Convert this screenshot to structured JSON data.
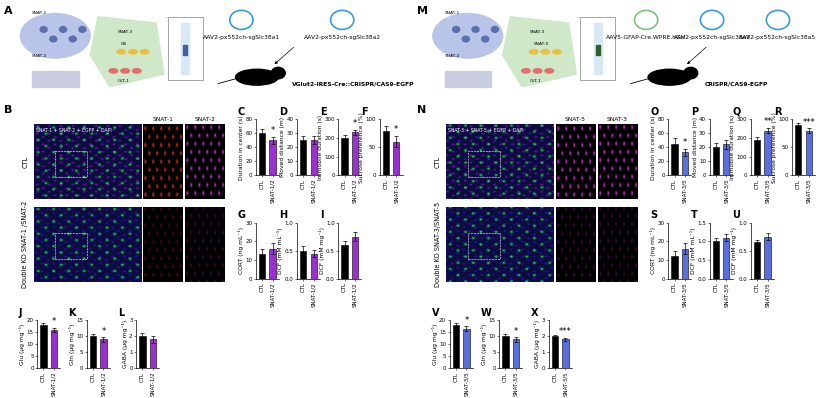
{
  "chart_data": [
    {
      "type": "bar",
      "title": "C",
      "ylabel": "Duration in center (s)",
      "categories": [
        "CTL",
        "SNAT-1/2"
      ],
      "values": [
        60,
        50
      ],
      "errors": [
        6,
        5
      ],
      "colors": [
        "#000000",
        "#9b30d0"
      ],
      "ylim": [
        0,
        80
      ],
      "yticks": [
        0,
        20,
        40,
        60,
        80
      ],
      "significance": "*"
    },
    {
      "type": "bar",
      "title": "D",
      "ylabel": "Moved distance (m)",
      "categories": [
        "CTL",
        "SNAT-1/2"
      ],
      "values": [
        25,
        25
      ],
      "errors": [
        3,
        3
      ],
      "colors": [
        "#000000",
        "#9b30d0"
      ],
      "ylim": [
        0,
        40
      ],
      "yticks": [
        0,
        10,
        20,
        30,
        40
      ]
    },
    {
      "type": "bar",
      "title": "E",
      "ylabel": "Immobile duration (s)",
      "categories": [
        "CTL",
        "SNAT-1/2"
      ],
      "values": [
        200,
        230
      ],
      "errors": [
        15,
        15
      ],
      "colors": [
        "#000000",
        "#9b30d0"
      ],
      "ylim": [
        0,
        300
      ],
      "yticks": [
        0,
        100,
        200,
        300
      ],
      "significance": "*"
    },
    {
      "type": "bar",
      "title": "F",
      "ylabel": "Sucrose preference (%)",
      "categories": [
        "CTL",
        "SNAT-1/2"
      ],
      "values": [
        80,
        60
      ],
      "errors": [
        8,
        10
      ],
      "colors": [
        "#000000",
        "#9b30d0"
      ],
      "ylim": [
        0,
        100
      ],
      "yticks": [
        0,
        50,
        100
      ],
      "significance": "*"
    },
    {
      "type": "bar",
      "title": "G",
      "ylabel": "CORT (ng mL⁻¹)",
      "categories": [
        "CTL",
        "SNAT-1/2"
      ],
      "values": [
        13,
        16
      ],
      "errors": [
        3,
        3
      ],
      "colors": [
        "#000000",
        "#9b30d0"
      ],
      "ylim": [
        0,
        30
      ],
      "yticks": [
        0,
        10,
        20,
        30
      ]
    },
    {
      "type": "bar",
      "title": "H",
      "ylabel": "DCF (mM mL⁻¹)",
      "categories": [
        "CTL",
        "SNAT-1/2"
      ],
      "values": [
        0.5,
        0.45
      ],
      "errors": [
        0.08,
        0.06
      ],
      "colors": [
        "#000000",
        "#9b30d0"
      ],
      "ylim": [
        0.0,
        1.0
      ],
      "yticks": [
        0.0,
        0.5,
        1.0
      ]
    },
    {
      "type": "bar",
      "title": "I",
      "ylabel": "DCF (mM mg⁻¹)",
      "categories": [
        "CTL",
        "SNAT-1/2"
      ],
      "values": [
        0.6,
        0.75
      ],
      "errors": [
        0.08,
        0.08
      ],
      "colors": [
        "#000000",
        "#9b30d0"
      ],
      "ylim": [
        0.0,
        1.0
      ],
      "yticks": [
        0.0,
        0.5,
        1.0
      ]
    },
    {
      "type": "bar",
      "title": "J",
      "ylabel": "Glu (μg mg⁻¹)",
      "categories": [
        "CTL",
        "SNAT-1/2"
      ],
      "values": [
        18,
        16
      ],
      "errors": [
        1,
        1
      ],
      "colors": [
        "#000000",
        "#9b30d0"
      ],
      "ylim": [
        0,
        20
      ],
      "yticks": [
        0,
        5,
        10,
        15,
        20
      ],
      "significance": "*"
    },
    {
      "type": "bar",
      "title": "K",
      "ylabel": "Gln (μg mg⁻¹)",
      "categories": [
        "CTL",
        "SNAT-1/2"
      ],
      "values": [
        10,
        9
      ],
      "errors": [
        0.8,
        0.8
      ],
      "colors": [
        "#000000",
        "#9b30d0"
      ],
      "ylim": [
        0,
        15
      ],
      "yticks": [
        0,
        5,
        10,
        15
      ],
      "significance": "*"
    },
    {
      "type": "bar",
      "title": "L",
      "ylabel": "GABA (μg mg⁻¹)",
      "categories": [
        "CTL",
        "SNAT-1/2"
      ],
      "values": [
        2.0,
        1.8
      ],
      "errors": [
        0.2,
        0.2
      ],
      "colors": [
        "#000000",
        "#9b30d0"
      ],
      "ylim": [
        0,
        3
      ],
      "yticks": [
        0,
        1,
        2,
        3
      ]
    },
    {
      "type": "bar",
      "title": "O",
      "ylabel": "Duration in center (s)",
      "categories": [
        "CTL",
        "SNAT-3/5"
      ],
      "values": [
        45,
        33
      ],
      "errors": [
        8,
        5
      ],
      "colors": [
        "#000000",
        "#5a6ee0"
      ],
      "ylim": [
        0,
        80
      ],
      "yticks": [
        0,
        20,
        40,
        60,
        80
      ],
      "significance": "*"
    },
    {
      "type": "bar",
      "title": "P",
      "ylabel": "Moved distance (m)",
      "categories": [
        "CTL",
        "SNAT-3/5"
      ],
      "values": [
        20,
        22
      ],
      "errors": [
        3,
        3
      ],
      "colors": [
        "#000000",
        "#5a6ee0"
      ],
      "ylim": [
        0,
        40
      ],
      "yticks": [
        0,
        10,
        20,
        30,
        40
      ]
    },
    {
      "type": "bar",
      "title": "Q",
      "ylabel": "Immobile duration (s)",
      "categories": [
        "CTL",
        "SNAT-3/5"
      ],
      "values": [
        190,
        240
      ],
      "errors": [
        15,
        15
      ],
      "colors": [
        "#000000",
        "#5a6ee0"
      ],
      "ylim": [
        0,
        300
      ],
      "yticks": [
        0,
        100,
        200,
        300
      ],
      "significance": "**"
    },
    {
      "type": "bar",
      "title": "R",
      "ylabel": "Sucrose preference (%)",
      "categories": [
        "CTL",
        "SNAT-3/5"
      ],
      "values": [
        90,
        80
      ],
      "errors": [
        4,
        4
      ],
      "colors": [
        "#000000",
        "#5a6ee0"
      ],
      "ylim": [
        0,
        100
      ],
      "yticks": [
        0,
        50,
        100
      ],
      "significance": "***"
    },
    {
      "type": "bar",
      "title": "S",
      "ylabel": "CORT (ng mL⁻¹)",
      "categories": [
        "CTL",
        "SNAT-3/5"
      ],
      "values": [
        12,
        16
      ],
      "errors": [
        3,
        3
      ],
      "colors": [
        "#000000",
        "#5a6ee0"
      ],
      "ylim": [
        0,
        30
      ],
      "yticks": [
        0,
        10,
        20,
        30
      ]
    },
    {
      "type": "bar",
      "title": "T",
      "ylabel": "DCF (mM mL⁻¹)",
      "categories": [
        "CTL",
        "SNAT-3/5"
      ],
      "values": [
        1.0,
        1.1
      ],
      "errors": [
        0.1,
        0.1
      ],
      "colors": [
        "#000000",
        "#5a6ee0"
      ],
      "ylim": [
        0.0,
        1.5
      ],
      "yticks": [
        0.0,
        0.5,
        1.0,
        1.5
      ]
    },
    {
      "type": "bar",
      "title": "U",
      "ylabel": "DCF (mM mg⁻¹)",
      "categories": [
        "CTL",
        "SNAT-3/5"
      ],
      "values": [
        0.65,
        0.75
      ],
      "errors": [
        0.05,
        0.06
      ],
      "colors": [
        "#000000",
        "#5a6ee0"
      ],
      "ylim": [
        0.0,
        1.0
      ],
      "yticks": [
        0.0,
        0.5,
        1.0
      ]
    },
    {
      "type": "bar",
      "title": "V",
      "ylabel": "Glu (μg mg⁻¹)",
      "categories": [
        "CTL",
        "SNAT-3/5"
      ],
      "values": [
        18,
        16.5
      ],
      "errors": [
        1,
        1
      ],
      "colors": [
        "#000000",
        "#5a6ee0"
      ],
      "ylim": [
        0,
        20
      ],
      "yticks": [
        0,
        5,
        10,
        15,
        20
      ],
      "significance": "*"
    },
    {
      "type": "bar",
      "title": "W",
      "ylabel": "Gln (μg mg⁻¹)",
      "categories": [
        "CTL",
        "SNAT-3/5"
      ],
      "values": [
        10,
        9
      ],
      "errors": [
        0.8,
        0.8
      ],
      "colors": [
        "#000000",
        "#5a6ee0"
      ],
      "ylim": [
        0,
        15
      ],
      "yticks": [
        0,
        5,
        10,
        15
      ],
      "significance": "*"
    },
    {
      "type": "bar",
      "title": "X",
      "ylabel": "GABA (μg mg⁻¹)",
      "categories": [
        "CTL",
        "SNAT-3/5"
      ],
      "values": [
        2.0,
        1.8
      ],
      "errors": [
        0.1,
        0.1
      ],
      "colors": [
        "#000000",
        "#5a6ee0"
      ],
      "ylim": [
        0,
        3
      ],
      "yticks": [
        0,
        1,
        2,
        3
      ],
      "significance": "***"
    }
  ],
  "diagram": {
    "halves": [
      {
        "panel_schematic": "A",
        "panel_image": "B",
        "cell_labels": [
          "SNAT-1",
          "SNAT-2",
          "SNAT-3",
          "GS",
          "GLT-1"
        ],
        "vectors": [
          "AAV2-px552ch-sgSlc38a1",
          "AAV2-px552ch-sgSlc38a2"
        ],
        "mouse": "VGlut2-IRES-Cre::CRISPR/CAS9-EGFP",
        "image_rows": [
          "CTL",
          "Double KO SNAT-1 /SNAT-2"
        ],
        "image_columns": [
          "SNAT-1 + SNAT-2 + EGFP + DAPI",
          "SNAT-1",
          "SNAT-2"
        ]
      },
      {
        "panel_schematic": "M",
        "panel_image": "N",
        "cell_labels": [
          "SNAT-1",
          "SNAT-2",
          "SNAT-3",
          "SNAT-5",
          "GLT-1"
        ],
        "vectors": [
          "AAV5-GFAP-Cre.WPRE.hGH",
          "AAV2-px552ch-sgSlc38a3",
          "AAV2-px552ch-sgSlc38a5"
        ],
        "mouse": "CRISPR/CAS9-EGFP",
        "image_rows": [
          "CTL",
          "Double KO SNAT-3/SNAT-5"
        ],
        "image_columns": [
          "SNAT-3 + SNAT-5 + EGFP + DAPI",
          "SNAT-5",
          "SNAT-3"
        ]
      }
    ]
  }
}
